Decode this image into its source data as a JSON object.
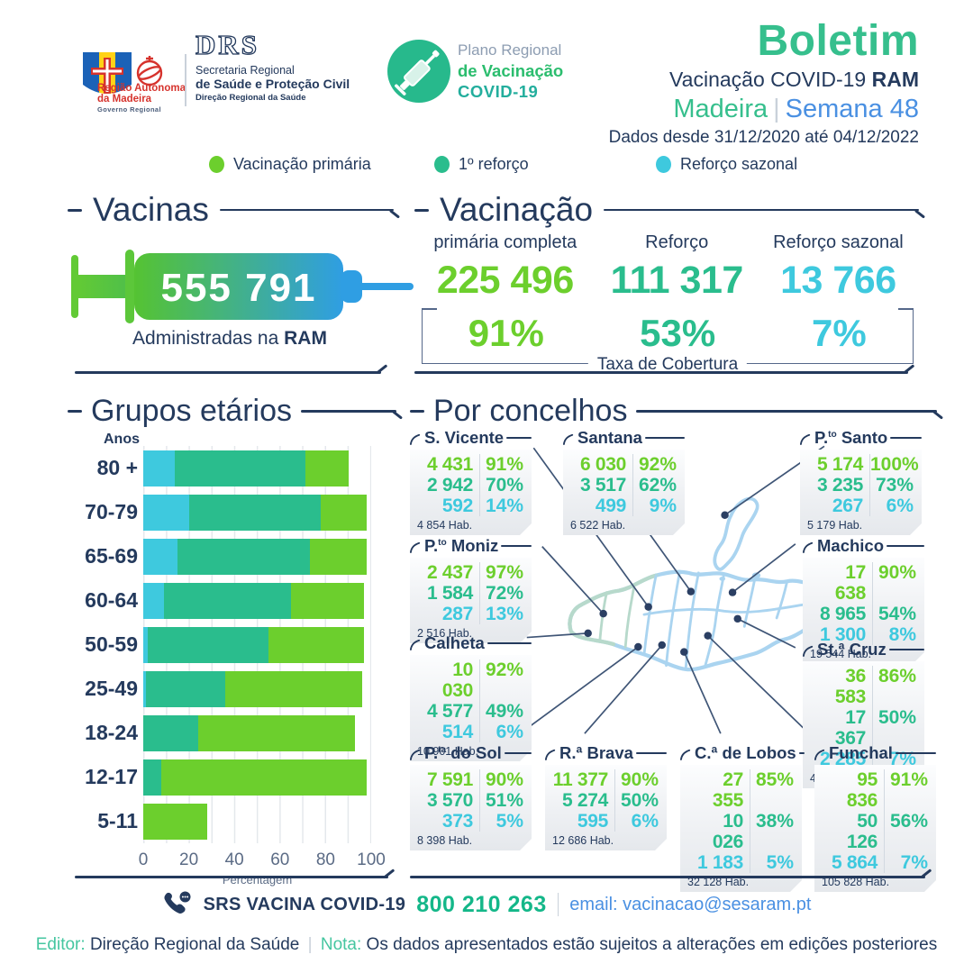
{
  "theme": {
    "navy": "#243a5d",
    "green": "#6ccf2d",
    "teal": "#2abd8d",
    "cyan": "#3ec9de",
    "blue": "#4a90e2",
    "title-green": "#36bf8d",
    "map-blue": "#aad4f0",
    "map-teal": "#b7d9cb",
    "gray-line": "#c9d1da",
    "muted": "#8d9db2"
  },
  "header": {
    "org1": {
      "line1": "Região Autónoma",
      "line2": "da Madeira",
      "line3": "Governo Regional"
    },
    "org2": {
      "acronym": "DRS",
      "line1": "Secretaria Regional",
      "line2": "de Saúde e Proteção Civil",
      "line3": "Direção Regional da Saúde"
    },
    "plano": {
      "line1": "Plano Regional",
      "line2": "de Vacinação",
      "line3": "COVID-19"
    },
    "title": "Boletim",
    "subtitle_prefix": "Vacinação COVID-19 ",
    "subtitle_bold": "RAM",
    "region": "Madeira",
    "separator": "|",
    "week": "Semana 48",
    "date_range": "Dados desde 31/12/2020 até 04/12/2022"
  },
  "legend": {
    "items": [
      {
        "label": "Vacinação primária",
        "color": "#6ccf2d"
      },
      {
        "label": "1º reforço",
        "color": "#2abd8d"
      },
      {
        "label": "Reforço sazonal",
        "color": "#3ec9de"
      }
    ]
  },
  "vacinas": {
    "title": "Vacinas",
    "total": "555 791",
    "caption_prefix": "Administradas na ",
    "caption_bold": "RAM"
  },
  "vacinacao": {
    "title": "Vacinação",
    "columns": [
      {
        "label": "primária completa",
        "value": "225 496",
        "pct": "91%"
      },
      {
        "label": "Reforço",
        "value": "111 317",
        "pct": "53%"
      },
      {
        "label": "Reforço sazonal",
        "value": "13 766",
        "pct": "7%"
      }
    ],
    "coverage_label": "Taxa de Cobertura"
  },
  "chart_data": {
    "type": "bar",
    "orientation": "horizontal",
    "title": "Grupos etários",
    "ylabel": "Anos",
    "xlabel": "Percentagem",
    "xlim": [
      0,
      100
    ],
    "xticks": [
      0,
      20,
      40,
      60,
      80,
      100
    ],
    "grid": true,
    "layering": "overlaid",
    "categories": [
      "80 +",
      "70-79",
      "65-69",
      "60-64",
      "50-59",
      "25-49",
      "18-24",
      "12-17",
      "5-11"
    ],
    "series": [
      {
        "name": "Vacinação primária",
        "color": "#6ccf2d",
        "values": [
          90,
          98,
          98,
          97,
          97,
          96,
          93,
          98,
          28
        ]
      },
      {
        "name": "1º reforço",
        "color": "#2abd8d",
        "values": [
          71,
          78,
          73,
          65,
          55,
          36,
          24,
          8,
          0
        ]
      },
      {
        "name": "Reforço sazonal",
        "color": "#3ec9de",
        "values": [
          14,
          20,
          15,
          9,
          2,
          1,
          0,
          0,
          0
        ]
      }
    ]
  },
  "concelhos": {
    "title": "Por concelhos",
    "municipalities": [
      {
        "id": "s-vicente",
        "name_parts": [
          {
            "t": "S. Vicente"
          }
        ],
        "rows": [
          [
            "4 431",
            "91%"
          ],
          [
            "2 942",
            "70%"
          ],
          [
            "592",
            "14%"
          ]
        ],
        "hab": "4 854 Hab."
      },
      {
        "id": "santana",
        "name_parts": [
          {
            "t": "Santana"
          }
        ],
        "rows": [
          [
            "6 030",
            "92%"
          ],
          [
            "3 517",
            "62%"
          ],
          [
            "499",
            "9%"
          ]
        ],
        "hab": "6 522 Hab."
      },
      {
        "id": "porto-santo",
        "name_parts": [
          {
            "t": "P."
          },
          {
            "t": "to",
            "sup": true
          },
          {
            "t": " Santo"
          }
        ],
        "rows": [
          [
            "5 174",
            "100%"
          ],
          [
            "3 235",
            "73%"
          ],
          [
            "267",
            "6%"
          ]
        ],
        "hab": "5 179 Hab."
      },
      {
        "id": "porto-moniz",
        "name_parts": [
          {
            "t": "P."
          },
          {
            "t": "to",
            "sup": true
          },
          {
            "t": " Moniz"
          }
        ],
        "rows": [
          [
            "2 437",
            "97%"
          ],
          [
            "1 584",
            "72%"
          ],
          [
            "287",
            "13%"
          ]
        ],
        "hab": "2 516 Hab."
      },
      {
        "id": "machico",
        "name_parts": [
          {
            "t": "Machico"
          }
        ],
        "rows": [
          [
            "17 638",
            "90%"
          ],
          [
            "8 965",
            "54%"
          ],
          [
            "1 300",
            "8%"
          ]
        ],
        "hab": "19 544 Hab."
      },
      {
        "id": "calheta",
        "name_parts": [
          {
            "t": "Calheta"
          }
        ],
        "rows": [
          [
            "10 030",
            "92%"
          ],
          [
            "4 577",
            "49%"
          ],
          [
            "514",
            "6%"
          ]
        ],
        "hab": "10 901 Hab."
      },
      {
        "id": "santa-cruz",
        "name_parts": [
          {
            "t": "St.ª Cruz"
          }
        ],
        "rows": [
          [
            "36 583",
            "86%"
          ],
          [
            "17 367",
            "50%"
          ],
          [
            "2 285",
            "7%"
          ]
        ],
        "hab": "42 626 Hab."
      },
      {
        "id": "ponta-do-sol",
        "name_parts": [
          {
            "t": "P."
          },
          {
            "t": "ta",
            "sup": true
          },
          {
            "t": " do Sol"
          }
        ],
        "rows": [
          [
            "7 591",
            "90%"
          ],
          [
            "3 570",
            "51%"
          ],
          [
            "373",
            "5%"
          ]
        ],
        "hab": "8 398 Hab."
      },
      {
        "id": "ribeira-brava",
        "name_parts": [
          {
            "t": "R.ª Brava"
          }
        ],
        "rows": [
          [
            "11 377",
            "90%"
          ],
          [
            "5 274",
            "50%"
          ],
          [
            "595",
            "6%"
          ]
        ],
        "hab": "12 686 Hab."
      },
      {
        "id": "camara-de-lobos",
        "name_parts": [
          {
            "t": "C.ª de Lobos"
          }
        ],
        "rows": [
          [
            "27 355",
            "85%"
          ],
          [
            "10 026",
            "38%"
          ],
          [
            "1 183",
            "5%"
          ]
        ],
        "hab": "32 128 Hab."
      },
      {
        "id": "funchal",
        "name_parts": [
          {
            "t": "Funchal"
          }
        ],
        "rows": [
          [
            "95 836",
            "91%"
          ],
          [
            "50 126",
            "56%"
          ],
          [
            "5 864",
            "7%"
          ]
        ],
        "hab": "105 828 Hab."
      }
    ]
  },
  "footer": {
    "hotline_label": "SRS VACINA COVID-19",
    "hotline_number": "800 210 263",
    "email": "email: vacinacao@sesaram.pt",
    "editor_label": "Editor:",
    "editor_value": "Direção Regional da Saúde",
    "separator": "|",
    "note_label": "Nota:",
    "note_value": "Os dados apresentados estão sujeitos a alterações em edições posteriores"
  }
}
